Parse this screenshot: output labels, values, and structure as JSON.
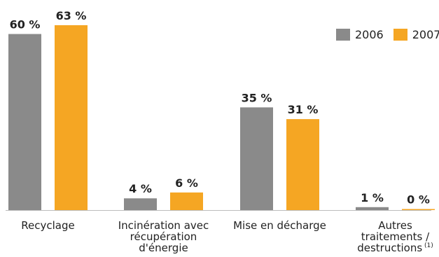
{
  "chart_data": {
    "type": "bar",
    "categories": [
      [
        "Recyclage"
      ],
      [
        "Incinération avec",
        "récupération",
        "d'énergie"
      ],
      [
        "Mise en décharge"
      ],
      [
        "Autres",
        "traitements /",
        "destructions"
      ]
    ],
    "category_footnotes": [
      "",
      "",
      "",
      "(1)"
    ],
    "series": [
      {
        "name": "2006",
        "color": "#8a8a8a",
        "values": [
          60,
          4,
          35,
          1
        ],
        "labels": [
          "60 %",
          "4 %",
          "35 %",
          "1 %"
        ]
      },
      {
        "name": "2007",
        "color": "#f5a623",
        "values": [
          63,
          6,
          31,
          0
        ],
        "labels": [
          "63 %",
          "6 %",
          "31 %",
          "0 %"
        ]
      }
    ],
    "ylim": [
      0,
      63
    ],
    "grid": false,
    "legend_position": "top-right"
  }
}
